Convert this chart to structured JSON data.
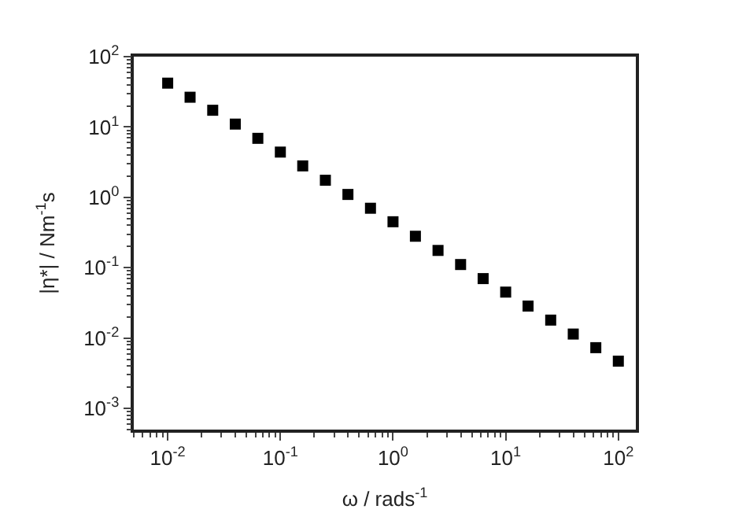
{
  "chart_data": {
    "type": "scatter",
    "xlabel": "ω / rads$^{-1}$",
    "ylabel": "|η*| / Nm$^{-1}$s",
    "log": "xy",
    "legend": false,
    "marker": "square",
    "x": [
      0.01,
      0.0158,
      0.0251,
      0.0398,
      0.0631,
      0.1,
      0.158,
      0.251,
      0.398,
      0.631,
      1,
      1.58,
      2.51,
      3.98,
      6.31,
      10,
      15.8,
      25.1,
      39.8,
      63.1,
      100
    ],
    "series": [
      {
        "color": "#000000",
        "values": [
          42,
          26.5,
          17.3,
          11,
          6.9,
          4.4,
          2.8,
          1.75,
          1.1,
          0.7,
          0.45,
          0.28,
          0.176,
          0.111,
          0.07,
          0.045,
          0.0285,
          0.018,
          0.0114,
          0.0073,
          0.0047
        ]
      }
    ],
    "xlim": [
      0.005,
      143
    ],
    "ylim": [
      0.0005,
      100
    ],
    "xticks": [
      {
        "value": 0.01,
        "label": "10$^{-2}$"
      },
      {
        "value": 0.1,
        "label": "10$^{-1}$"
      },
      {
        "value": 1,
        "label": "10$^{0}$"
      },
      {
        "value": 10,
        "label": "10$^{1}$"
      },
      {
        "value": 100,
        "label": "10$^{2}$"
      }
    ],
    "yticks": [
      {
        "value": 0.001,
        "label": "10$^{-3}$"
      },
      {
        "value": 0.01,
        "label": "10$^{-2}$"
      },
      {
        "value": 0.1,
        "label": "10$^{-1}$"
      },
      {
        "value": 1,
        "label": "10$^{0}$"
      },
      {
        "value": 10,
        "label": "10$^{1}$"
      },
      {
        "value": 100,
        "label": "10$^{2}$"
      }
    ]
  }
}
